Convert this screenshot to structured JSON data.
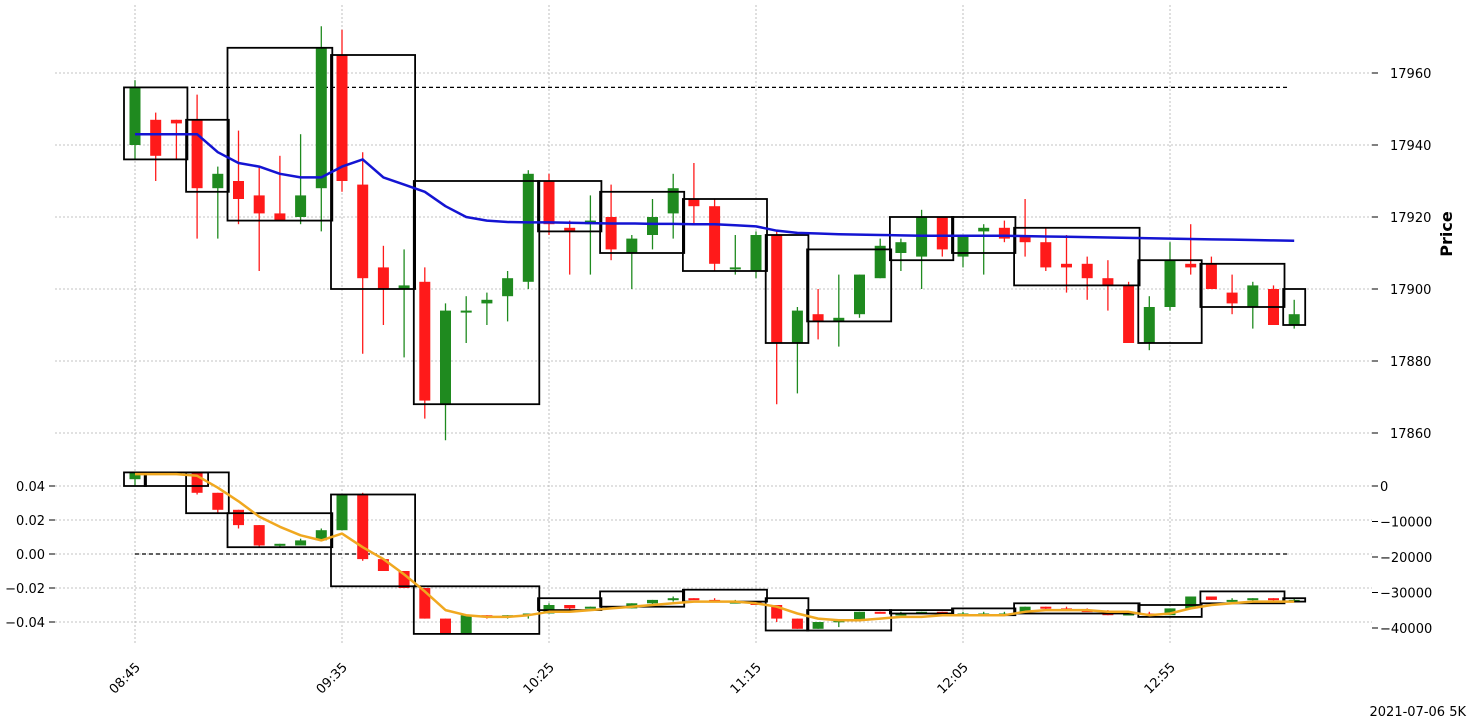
{
  "footer": "2021-07-06 5K",
  "colors": {
    "up": "#1f8a1f",
    "down": "#ff1a1a",
    "ema": "#1414d2",
    "osc_line": "#f0a820",
    "box": "#000000",
    "grid": "#b0b0b0"
  },
  "chart_data": [
    {
      "type": "candlestick",
      "ylabel": "Price",
      "ylim": [
        17850,
        17975
      ],
      "yticks": [
        17860,
        17880,
        17900,
        17920,
        17940,
        17960
      ],
      "xtick_labels": [
        "08:45",
        "09:35",
        "10:25",
        "11:15",
        "12:05",
        "12:55"
      ],
      "xtick_indices": [
        0,
        10,
        20,
        30,
        40,
        50
      ],
      "reference_level": 17956,
      "candles": [
        [
          17940,
          17958,
          17936,
          17956
        ],
        [
          17947,
          17949,
          17930,
          17937
        ],
        [
          17947,
          17947,
          17936,
          17946
        ],
        [
          17947,
          17954,
          17914,
          17928
        ],
        [
          17928,
          17934,
          17914,
          17932
        ],
        [
          17930,
          17944,
          17918,
          17925
        ],
        [
          17926,
          17934,
          17905,
          17921
        ],
        [
          17921,
          17937,
          17919,
          17919
        ],
        [
          17920,
          17943,
          17918,
          17926
        ],
        [
          17928,
          17973,
          17916,
          17967
        ],
        [
          17965,
          17972,
          17927,
          17930
        ],
        [
          17929,
          17938,
          17882,
          17903
        ],
        [
          17906,
          17912,
          17890,
          17900
        ],
        [
          17900,
          17911,
          17881,
          17901
        ],
        [
          17902,
          17906,
          17864,
          17869
        ],
        [
          17868,
          17896,
          17858,
          17894
        ],
        [
          17894,
          17898,
          17885,
          17894
        ],
        [
          17896,
          17899,
          17890,
          17897
        ],
        [
          17898,
          17905,
          17891,
          17903
        ],
        [
          17902,
          17933,
          17900,
          17932
        ],
        [
          17930,
          17932,
          17915,
          17918
        ],
        [
          17917,
          17919,
          17904,
          17916
        ],
        [
          17918,
          17926,
          17904,
          17919
        ],
        [
          17920,
          17929,
          17908,
          17911
        ],
        [
          17910,
          17915,
          17900,
          17914
        ],
        [
          17915,
          17925,
          17911,
          17920
        ],
        [
          17921,
          17932,
          17914,
          17928
        ],
        [
          17925,
          17935,
          17918,
          17923
        ],
        [
          17923,
          17925,
          17905,
          17907
        ],
        [
          17906,
          17915,
          17904,
          17906
        ],
        [
          17905,
          17916,
          17903,
          17915
        ],
        [
          17915,
          17916,
          17868,
          17885
        ],
        [
          17885,
          17895,
          17871,
          17894
        ],
        [
          17893,
          17900,
          17886,
          17891
        ],
        [
          17891,
          17904,
          17884,
          17892
        ],
        [
          17893,
          17904,
          17892,
          17904
        ],
        [
          17903,
          17914,
          17903,
          17912
        ],
        [
          17910,
          17914,
          17905,
          17913
        ],
        [
          17909,
          17922,
          17900,
          17920
        ],
        [
          17920,
          17920,
          17909,
          17911
        ],
        [
          17909,
          17915,
          17906,
          17915
        ],
        [
          17916,
          17918,
          17904,
          17917
        ],
        [
          17917,
          17919,
          17913,
          17914
        ],
        [
          17915,
          17925,
          17909,
          17913
        ],
        [
          17913,
          17917,
          17905,
          17906
        ],
        [
          17907,
          17915,
          17899,
          17906
        ],
        [
          17907,
          17909,
          17897,
          17903
        ],
        [
          17903,
          17908,
          17894,
          17901
        ],
        [
          17901,
          17902,
          17885,
          17885
        ],
        [
          17885,
          17898,
          17883,
          17895
        ],
        [
          17895,
          17913,
          17894,
          17908
        ],
        [
          17907,
          17918,
          17904,
          17906
        ],
        [
          17907,
          17909,
          17900,
          17900
        ],
        [
          17899,
          17904,
          17893,
          17896
        ],
        [
          17895,
          17902,
          17889,
          17901
        ],
        [
          17900,
          17901,
          17890,
          17890
        ],
        [
          17890,
          17897,
          17889,
          17893
        ]
      ],
      "ema": [
        17943,
        17943,
        17943,
        17943,
        17938,
        17935,
        17934,
        17932,
        17931,
        17931,
        17934,
        17936,
        17931,
        17929,
        17927,
        17923,
        17920,
        17919,
        17918.6,
        17918.5,
        17918.5,
        17918.4,
        17918.3,
        17918.2,
        17918.2,
        17918.1,
        17918.1,
        17918,
        17918,
        17917.7,
        17917.4,
        17916.2,
        17915.6,
        17915.4,
        17915.2,
        17915.1,
        17915,
        17914.9,
        17914.8,
        17914.8,
        17914.8,
        17914.8,
        17914.8,
        17914.7,
        17914.6,
        17914.5,
        17914.4,
        17914.3,
        17914.2,
        17914.1,
        17914,
        17913.9,
        17913.8,
        17913.7,
        17913.6,
        17913.5,
        17913.4
      ],
      "boxes": [
        {
          "start": 0,
          "end": 2,
          "low": 17936,
          "high": 17956
        },
        {
          "start": 3,
          "end": 4,
          "low": 17927,
          "high": 17947
        },
        {
          "start": 5,
          "end": 9,
          "low": 17919,
          "high": 17967
        },
        {
          "start": 10,
          "end": 13,
          "low": 17900,
          "high": 17965
        },
        {
          "start": 14,
          "end": 19,
          "low": 17868,
          "high": 17930
        },
        {
          "start": 20,
          "end": 22,
          "low": 17916,
          "high": 17930
        },
        {
          "start": 23,
          "end": 26,
          "low": 17910,
          "high": 17927
        },
        {
          "start": 27,
          "end": 30,
          "low": 17905,
          "high": 17925
        },
        {
          "start": 31,
          "end": 32,
          "low": 17885,
          "high": 17915
        },
        {
          "start": 33,
          "end": 36,
          "low": 17891,
          "high": 17911
        },
        {
          "start": 37,
          "end": 39,
          "low": 17908,
          "high": 17920
        },
        {
          "start": 40,
          "end": 42,
          "low": 17910,
          "high": 17920
        },
        {
          "start": 43,
          "end": 48,
          "low": 17901,
          "high": 17917
        },
        {
          "start": 49,
          "end": 51,
          "low": 17885,
          "high": 17908
        },
        {
          "start": 52,
          "end": 55,
          "low": 17895,
          "high": 17907
        },
        {
          "start": 56,
          "end": 56,
          "low": 17890,
          "high": 17900
        }
      ]
    },
    {
      "type": "candlestick",
      "ylim_left": [
        -0.047,
        0.048
      ],
      "yticks_left": [
        0.04,
        0.02,
        0.0,
        -0.02,
        -0.04
      ],
      "ytick_labels_left": [
        "0.04",
        "0.02",
        "0.00",
        "−0.02",
        "−0.04"
      ],
      "yticks_right": [
        0,
        -10000,
        -20000,
        -30000,
        -40000
      ],
      "ytick_labels_right": [
        "0",
        "−10000",
        "−20000",
        "−30000",
        "−40000"
      ],
      "reference_level": 0.0,
      "candles": [
        [
          0.044,
          0.048,
          0.04,
          0.048
        ],
        [
          0.048,
          0.048,
          0.048,
          0.048
        ],
        [
          0.048,
          0.048,
          0.048,
          0.048
        ],
        [
          0.048,
          0.048,
          0.035,
          0.036
        ],
        [
          0.036,
          0.036,
          0.024,
          0.026
        ],
        [
          0.026,
          0.026,
          0.015,
          0.017
        ],
        [
          0.017,
          0.017,
          0.004,
          0.005
        ],
        [
          0.005,
          0.006,
          0.004,
          0.006
        ],
        [
          0.005,
          0.009,
          0.005,
          0.008
        ],
        [
          0.008,
          0.015,
          0.008,
          0.014
        ],
        [
          0.014,
          0.035,
          0.014,
          0.035
        ],
        [
          0.035,
          0.036,
          -0.004,
          -0.003
        ],
        [
          -0.003,
          -0.003,
          -0.01,
          -0.01
        ],
        [
          -0.01,
          -0.01,
          -0.02,
          -0.02
        ],
        [
          -0.02,
          -0.02,
          -0.038,
          -0.038
        ],
        [
          -0.038,
          -0.038,
          -0.047,
          -0.047
        ],
        [
          -0.047,
          -0.036,
          -0.047,
          -0.036
        ],
        [
          -0.036,
          -0.036,
          -0.038,
          -0.037
        ],
        [
          -0.037,
          -0.036,
          -0.038,
          -0.036
        ],
        [
          -0.036,
          -0.035,
          -0.038,
          -0.035
        ],
        [
          -0.035,
          -0.029,
          -0.035,
          -0.03
        ],
        [
          -0.03,
          -0.03,
          -0.033,
          -0.032
        ],
        [
          -0.032,
          -0.031,
          -0.032,
          -0.031
        ],
        [
          -0.031,
          -0.031,
          -0.032,
          -0.031
        ],
        [
          -0.032,
          -0.029,
          -0.032,
          -0.029
        ],
        [
          -0.029,
          -0.027,
          -0.03,
          -0.027
        ],
        [
          -0.027,
          -0.025,
          -0.028,
          -0.026
        ],
        [
          -0.026,
          -0.026,
          -0.027,
          -0.027
        ],
        [
          -0.027,
          -0.026,
          -0.028,
          -0.028
        ],
        [
          -0.028,
          -0.027,
          -0.029,
          -0.028
        ],
        [
          -0.028,
          -0.028,
          -0.03,
          -0.03
        ],
        [
          -0.03,
          -0.03,
          -0.04,
          -0.038
        ],
        [
          -0.038,
          -0.038,
          -0.044,
          -0.044
        ],
        [
          -0.044,
          -0.04,
          -0.044,
          -0.04
        ],
        [
          -0.04,
          -0.039,
          -0.043,
          -0.039
        ],
        [
          -0.039,
          -0.034,
          -0.039,
          -0.034
        ],
        [
          -0.034,
          -0.034,
          -0.035,
          -0.035
        ],
        [
          -0.035,
          -0.034,
          -0.036,
          -0.035
        ],
        [
          -0.035,
          -0.034,
          -0.035,
          -0.034
        ],
        [
          -0.034,
          -0.034,
          -0.035,
          -0.035
        ],
        [
          -0.035,
          -0.034,
          -0.036,
          -0.035
        ],
        [
          -0.035,
          -0.034,
          -0.036,
          -0.035
        ],
        [
          -0.035,
          -0.034,
          -0.035,
          -0.035
        ],
        [
          -0.035,
          -0.031,
          -0.035,
          -0.031
        ],
        [
          -0.031,
          -0.031,
          -0.033,
          -0.032
        ],
        [
          -0.032,
          -0.031,
          -0.033,
          -0.033
        ],
        [
          -0.033,
          -0.032,
          -0.034,
          -0.034
        ],
        [
          -0.034,
          -0.033,
          -0.036,
          -0.036
        ],
        [
          -0.036,
          -0.034,
          -0.036,
          -0.035
        ],
        [
          -0.035,
          -0.034,
          -0.036,
          -0.036
        ],
        [
          -0.036,
          -0.032,
          -0.036,
          -0.032
        ],
        [
          -0.032,
          -0.025,
          -0.032,
          -0.025
        ],
        [
          -0.025,
          -0.025,
          -0.027,
          -0.027
        ],
        [
          -0.027,
          -0.026,
          -0.028,
          -0.027
        ],
        [
          -0.027,
          -0.026,
          -0.028,
          -0.026
        ],
        [
          -0.026,
          -0.026,
          -0.028,
          -0.027
        ],
        [
          -0.027,
          -0.026,
          -0.028,
          -0.027
        ]
      ],
      "ema": [
        0.047,
        0.047,
        0.047,
        0.046,
        0.039,
        0.031,
        0.022,
        0.016,
        0.011,
        0.008,
        0.012,
        0.004,
        -0.003,
        -0.012,
        -0.022,
        -0.033,
        -0.036,
        -0.037,
        -0.037,
        -0.036,
        -0.034,
        -0.034,
        -0.033,
        -0.032,
        -0.031,
        -0.03,
        -0.029,
        -0.028,
        -0.028,
        -0.028,
        -0.029,
        -0.031,
        -0.035,
        -0.038,
        -0.039,
        -0.039,
        -0.038,
        -0.037,
        -0.037,
        -0.036,
        -0.036,
        -0.036,
        -0.036,
        -0.034,
        -0.033,
        -0.033,
        -0.033,
        -0.034,
        -0.034,
        -0.036,
        -0.035,
        -0.032,
        -0.03,
        -0.029,
        -0.028,
        -0.028,
        -0.028
      ],
      "boxes": [
        {
          "start": 0,
          "end": 0,
          "low": 0.04,
          "high": 0.048
        },
        {
          "start": 1,
          "end": 3,
          "low": 0.04,
          "high": 0.048
        },
        {
          "start": 3,
          "end": 4,
          "low": 0.024,
          "high": 0.048
        },
        {
          "start": 5,
          "end": 9,
          "low": 0.004,
          "high": 0.024
        },
        {
          "start": 10,
          "end": 13,
          "low": -0.019,
          "high": 0.035
        },
        {
          "start": 14,
          "end": 19,
          "low": -0.047,
          "high": -0.019
        },
        {
          "start": 20,
          "end": 22,
          "low": -0.033,
          "high": -0.026
        },
        {
          "start": 23,
          "end": 26,
          "low": -0.031,
          "high": -0.022
        },
        {
          "start": 27,
          "end": 30,
          "low": -0.028,
          "high": -0.021
        },
        {
          "start": 31,
          "end": 32,
          "low": -0.045,
          "high": -0.026
        },
        {
          "start": 33,
          "end": 36,
          "low": -0.045,
          "high": -0.033
        },
        {
          "start": 37,
          "end": 39,
          "low": -0.035,
          "high": -0.033
        },
        {
          "start": 40,
          "end": 42,
          "low": -0.036,
          "high": -0.032
        },
        {
          "start": 43,
          "end": 48,
          "low": -0.035,
          "high": -0.029
        },
        {
          "start": 49,
          "end": 51,
          "low": -0.037,
          "high": -0.03
        },
        {
          "start": 52,
          "end": 55,
          "low": -0.029,
          "high": -0.022
        },
        {
          "start": 56,
          "end": 56,
          "low": -0.028,
          "high": -0.026
        }
      ]
    }
  ]
}
